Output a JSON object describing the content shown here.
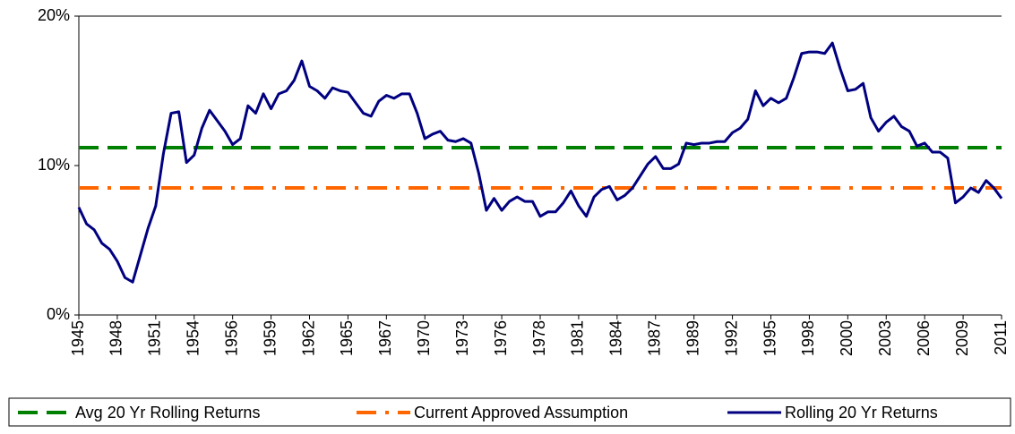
{
  "chart_data": {
    "type": "line",
    "categories": [
      "1945",
      null,
      null,
      null,
      null,
      "1948",
      null,
      null,
      null,
      null,
      "1951",
      null,
      null,
      null,
      null,
      "1954",
      null,
      null,
      null,
      null,
      "1956",
      null,
      null,
      null,
      null,
      "1959",
      null,
      null,
      null,
      null,
      "1962",
      null,
      null,
      null,
      null,
      "1965",
      null,
      null,
      null,
      null,
      "1967",
      null,
      null,
      null,
      null,
      "1970",
      null,
      null,
      null,
      null,
      "1973",
      null,
      null,
      null,
      null,
      "1976",
      null,
      null,
      null,
      null,
      "1978",
      null,
      null,
      null,
      null,
      "1981",
      null,
      null,
      null,
      null,
      "1984",
      null,
      null,
      null,
      null,
      "1987",
      null,
      null,
      null,
      null,
      "1989",
      null,
      null,
      null,
      null,
      "1992",
      null,
      null,
      null,
      null,
      "1995",
      null,
      null,
      null,
      null,
      "1998",
      null,
      null,
      null,
      null,
      "2000",
      null,
      null,
      null,
      null,
      "2003",
      null,
      null,
      null,
      null,
      "2006",
      null,
      null,
      null,
      null,
      "2009",
      null,
      null,
      null,
      null,
      "2011"
    ],
    "series": [
      {
        "name": "Avg 20 Yr Rolling Returns",
        "color": "#008000",
        "dash": "dashed",
        "values": [
          11.2,
          11.2,
          11.2,
          11.2,
          11.2,
          11.2,
          11.2,
          11.2,
          11.2,
          11.2,
          11.2,
          11.2,
          11.2,
          11.2,
          11.2,
          11.2,
          11.2,
          11.2,
          11.2,
          11.2,
          11.2,
          11.2,
          11.2,
          11.2,
          11.2,
          11.2,
          11.2,
          11.2,
          11.2,
          11.2,
          11.2,
          11.2,
          11.2,
          11.2,
          11.2,
          11.2,
          11.2,
          11.2,
          11.2,
          11.2,
          11.2,
          11.2,
          11.2,
          11.2,
          11.2,
          11.2,
          11.2,
          11.2,
          11.2,
          11.2,
          11.2,
          11.2,
          11.2,
          11.2,
          11.2,
          11.2,
          11.2,
          11.2,
          11.2,
          11.2,
          11.2,
          11.2,
          11.2,
          11.2,
          11.2,
          11.2,
          11.2,
          11.2,
          11.2,
          11.2,
          11.2,
          11.2,
          11.2,
          11.2,
          11.2,
          11.2,
          11.2,
          11.2,
          11.2,
          11.2,
          11.2,
          11.2,
          11.2,
          11.2,
          11.2,
          11.2,
          11.2,
          11.2,
          11.2,
          11.2,
          11.2,
          11.2,
          11.2,
          11.2,
          11.2,
          11.2,
          11.2,
          11.2,
          11.2,
          11.2,
          11.2,
          11.2,
          11.2,
          11.2,
          11.2,
          11.2,
          11.2,
          11.2,
          11.2,
          11.2,
          11.2,
          11.2,
          11.2,
          11.2,
          11.2,
          11.2,
          11.2,
          11.2,
          11.2,
          11.2,
          11.2
        ]
      },
      {
        "name": "Current Approved Assumption",
        "color": "#ff6600",
        "dash": "dashdot",
        "values": [
          8.5,
          8.5,
          8.5,
          8.5,
          8.5,
          8.5,
          8.5,
          8.5,
          8.5,
          8.5,
          8.5,
          8.5,
          8.5,
          8.5,
          8.5,
          8.5,
          8.5,
          8.5,
          8.5,
          8.5,
          8.5,
          8.5,
          8.5,
          8.5,
          8.5,
          8.5,
          8.5,
          8.5,
          8.5,
          8.5,
          8.5,
          8.5,
          8.5,
          8.5,
          8.5,
          8.5,
          8.5,
          8.5,
          8.5,
          8.5,
          8.5,
          8.5,
          8.5,
          8.5,
          8.5,
          8.5,
          8.5,
          8.5,
          8.5,
          8.5,
          8.5,
          8.5,
          8.5,
          8.5,
          8.5,
          8.5,
          8.5,
          8.5,
          8.5,
          8.5,
          8.5,
          8.5,
          8.5,
          8.5,
          8.5,
          8.5,
          8.5,
          8.5,
          8.5,
          8.5,
          8.5,
          8.5,
          8.5,
          8.5,
          8.5,
          8.5,
          8.5,
          8.5,
          8.5,
          8.5,
          8.5,
          8.5,
          8.5,
          8.5,
          8.5,
          8.5,
          8.5,
          8.5,
          8.5,
          8.5,
          8.5,
          8.5,
          8.5,
          8.5,
          8.5,
          8.5,
          8.5,
          8.5,
          8.5,
          8.5,
          8.5,
          8.5,
          8.5,
          8.5,
          8.5,
          8.5,
          8.5,
          8.5,
          8.5,
          8.5,
          8.5,
          8.5,
          8.5,
          8.5,
          8.5,
          8.5,
          8.5,
          8.5,
          8.5,
          8.5,
          8.5
        ]
      },
      {
        "name": "Rolling 20 Yr Returns",
        "color": "#000080",
        "dash": "solid",
        "values": [
          7.2,
          6.1,
          5.7,
          4.8,
          4.4,
          3.6,
          2.5,
          2.2,
          4.0,
          5.8,
          7.3,
          10.8,
          13.5,
          13.6,
          10.2,
          10.7,
          12.5,
          13.7,
          13.0,
          12.3,
          11.4,
          11.8,
          14.0,
          13.5,
          14.8,
          13.8,
          14.8,
          15.0,
          15.7,
          17.0,
          15.3,
          15.0,
          14.5,
          15.2,
          15.0,
          14.9,
          14.2,
          13.5,
          13.3,
          14.3,
          14.7,
          14.5,
          14.8,
          14.8,
          13.5,
          11.8,
          12.1,
          12.3,
          11.7,
          11.6,
          11.8,
          11.5,
          9.5,
          7.0,
          7.8,
          7.0,
          7.6,
          7.9,
          7.6,
          7.6,
          6.6,
          6.9,
          6.9,
          7.5,
          8.3,
          7.3,
          6.6,
          7.9,
          8.4,
          8.6,
          7.7,
          8.0,
          8.5,
          9.3,
          10.1,
          10.6,
          9.8,
          9.8,
          10.1,
          11.5,
          11.4,
          11.5,
          11.5,
          11.6,
          11.6,
          12.2,
          12.5,
          13.1,
          15.0,
          14.0,
          14.5,
          14.2,
          14.5,
          15.9,
          17.5,
          17.6,
          17.6,
          17.5,
          18.2,
          16.5,
          15.0,
          15.1,
          15.5,
          13.2,
          12.3,
          12.9,
          13.3,
          12.6,
          12.3,
          11.3,
          11.5,
          10.9,
          10.9,
          10.5,
          7.5,
          7.9,
          8.5,
          8.2,
          9.0,
          8.5,
          7.8
        ]
      }
    ],
    "ylim": [
      0,
      20
    ],
    "yticks": [
      {
        "value": 0,
        "label": "0%"
      },
      {
        "value": 10,
        "label": "10%"
      },
      {
        "value": 20,
        "label": "20%"
      }
    ],
    "grid": false,
    "legend": "bottom"
  }
}
